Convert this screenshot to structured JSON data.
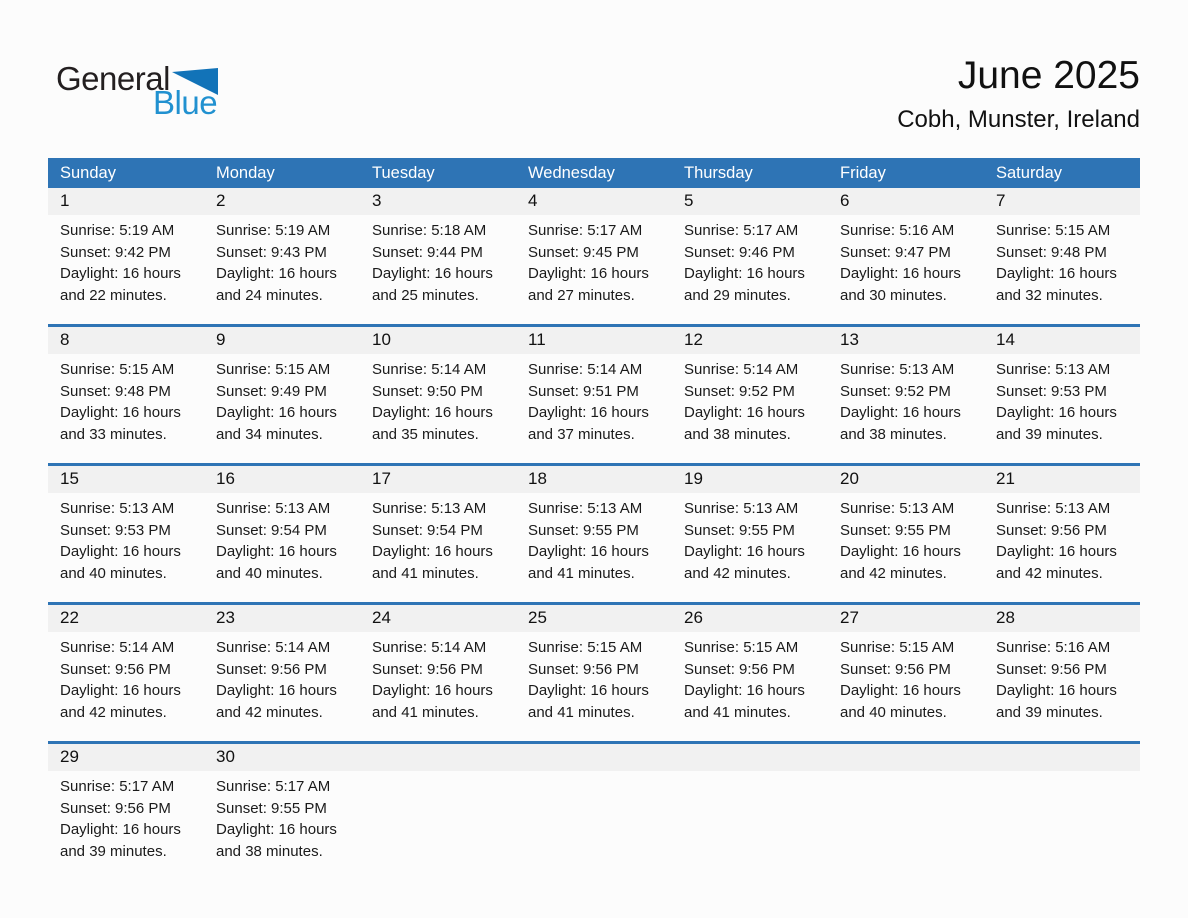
{
  "logo": {
    "line1": "General",
    "line2": "Blue"
  },
  "title": {
    "month": "June 2025",
    "location": "Cobh, Munster, Ireland"
  },
  "colors": {
    "header_blue": "#2e74b5",
    "separator_blue": "#2e74b5",
    "band_gray": "#f1f1f1",
    "logo_blue": "#2191d0",
    "logo_dark": "#231f20"
  },
  "weekdays": [
    "Sunday",
    "Monday",
    "Tuesday",
    "Wednesday",
    "Thursday",
    "Friday",
    "Saturday"
  ],
  "weeks": [
    [
      {
        "day": "1",
        "sunrise": "Sunrise: 5:19 AM",
        "sunset": "Sunset: 9:42 PM",
        "daylight": "Daylight: 16 hours and 22 minutes."
      },
      {
        "day": "2",
        "sunrise": "Sunrise: 5:19 AM",
        "sunset": "Sunset: 9:43 PM",
        "daylight": "Daylight: 16 hours and 24 minutes."
      },
      {
        "day": "3",
        "sunrise": "Sunrise: 5:18 AM",
        "sunset": "Sunset: 9:44 PM",
        "daylight": "Daylight: 16 hours and 25 minutes."
      },
      {
        "day": "4",
        "sunrise": "Sunrise: 5:17 AM",
        "sunset": "Sunset: 9:45 PM",
        "daylight": "Daylight: 16 hours and 27 minutes."
      },
      {
        "day": "5",
        "sunrise": "Sunrise: 5:17 AM",
        "sunset": "Sunset: 9:46 PM",
        "daylight": "Daylight: 16 hours and 29 minutes."
      },
      {
        "day": "6",
        "sunrise": "Sunrise: 5:16 AM",
        "sunset": "Sunset: 9:47 PM",
        "daylight": "Daylight: 16 hours and 30 minutes."
      },
      {
        "day": "7",
        "sunrise": "Sunrise: 5:15 AM",
        "sunset": "Sunset: 9:48 PM",
        "daylight": "Daylight: 16 hours and 32 minutes."
      }
    ],
    [
      {
        "day": "8",
        "sunrise": "Sunrise: 5:15 AM",
        "sunset": "Sunset: 9:48 PM",
        "daylight": "Daylight: 16 hours and 33 minutes."
      },
      {
        "day": "9",
        "sunrise": "Sunrise: 5:15 AM",
        "sunset": "Sunset: 9:49 PM",
        "daylight": "Daylight: 16 hours and 34 minutes."
      },
      {
        "day": "10",
        "sunrise": "Sunrise: 5:14 AM",
        "sunset": "Sunset: 9:50 PM",
        "daylight": "Daylight: 16 hours and 35 minutes."
      },
      {
        "day": "11",
        "sunrise": "Sunrise: 5:14 AM",
        "sunset": "Sunset: 9:51 PM",
        "daylight": "Daylight: 16 hours and 37 minutes."
      },
      {
        "day": "12",
        "sunrise": "Sunrise: 5:14 AM",
        "sunset": "Sunset: 9:52 PM",
        "daylight": "Daylight: 16 hours and 38 minutes."
      },
      {
        "day": "13",
        "sunrise": "Sunrise: 5:13 AM",
        "sunset": "Sunset: 9:52 PM",
        "daylight": "Daylight: 16 hours and 38 minutes."
      },
      {
        "day": "14",
        "sunrise": "Sunrise: 5:13 AM",
        "sunset": "Sunset: 9:53 PM",
        "daylight": "Daylight: 16 hours and 39 minutes."
      }
    ],
    [
      {
        "day": "15",
        "sunrise": "Sunrise: 5:13 AM",
        "sunset": "Sunset: 9:53 PM",
        "daylight": "Daylight: 16 hours and 40 minutes."
      },
      {
        "day": "16",
        "sunrise": "Sunrise: 5:13 AM",
        "sunset": "Sunset: 9:54 PM",
        "daylight": "Daylight: 16 hours and 40 minutes."
      },
      {
        "day": "17",
        "sunrise": "Sunrise: 5:13 AM",
        "sunset": "Sunset: 9:54 PM",
        "daylight": "Daylight: 16 hours and 41 minutes."
      },
      {
        "day": "18",
        "sunrise": "Sunrise: 5:13 AM",
        "sunset": "Sunset: 9:55 PM",
        "daylight": "Daylight: 16 hours and 41 minutes."
      },
      {
        "day": "19",
        "sunrise": "Sunrise: 5:13 AM",
        "sunset": "Sunset: 9:55 PM",
        "daylight": "Daylight: 16 hours and 42 minutes."
      },
      {
        "day": "20",
        "sunrise": "Sunrise: 5:13 AM",
        "sunset": "Sunset: 9:55 PM",
        "daylight": "Daylight: 16 hours and 42 minutes."
      },
      {
        "day": "21",
        "sunrise": "Sunrise: 5:13 AM",
        "sunset": "Sunset: 9:56 PM",
        "daylight": "Daylight: 16 hours and 42 minutes."
      }
    ],
    [
      {
        "day": "22",
        "sunrise": "Sunrise: 5:14 AM",
        "sunset": "Sunset: 9:56 PM",
        "daylight": "Daylight: 16 hours and 42 minutes."
      },
      {
        "day": "23",
        "sunrise": "Sunrise: 5:14 AM",
        "sunset": "Sunset: 9:56 PM",
        "daylight": "Daylight: 16 hours and 42 minutes."
      },
      {
        "day": "24",
        "sunrise": "Sunrise: 5:14 AM",
        "sunset": "Sunset: 9:56 PM",
        "daylight": "Daylight: 16 hours and 41 minutes."
      },
      {
        "day": "25",
        "sunrise": "Sunrise: 5:15 AM",
        "sunset": "Sunset: 9:56 PM",
        "daylight": "Daylight: 16 hours and 41 minutes."
      },
      {
        "day": "26",
        "sunrise": "Sunrise: 5:15 AM",
        "sunset": "Sunset: 9:56 PM",
        "daylight": "Daylight: 16 hours and 41 minutes."
      },
      {
        "day": "27",
        "sunrise": "Sunrise: 5:15 AM",
        "sunset": "Sunset: 9:56 PM",
        "daylight": "Daylight: 16 hours and 40 minutes."
      },
      {
        "day": "28",
        "sunrise": "Sunrise: 5:16 AM",
        "sunset": "Sunset: 9:56 PM",
        "daylight": "Daylight: 16 hours and 39 minutes."
      }
    ],
    [
      {
        "day": "29",
        "sunrise": "Sunrise: 5:17 AM",
        "sunset": "Sunset: 9:56 PM",
        "daylight": "Daylight: 16 hours and 39 minutes."
      },
      {
        "day": "30",
        "sunrise": "Sunrise: 5:17 AM",
        "sunset": "Sunset: 9:55 PM",
        "daylight": "Daylight: 16 hours and 38 minutes."
      },
      null,
      null,
      null,
      null,
      null
    ]
  ]
}
